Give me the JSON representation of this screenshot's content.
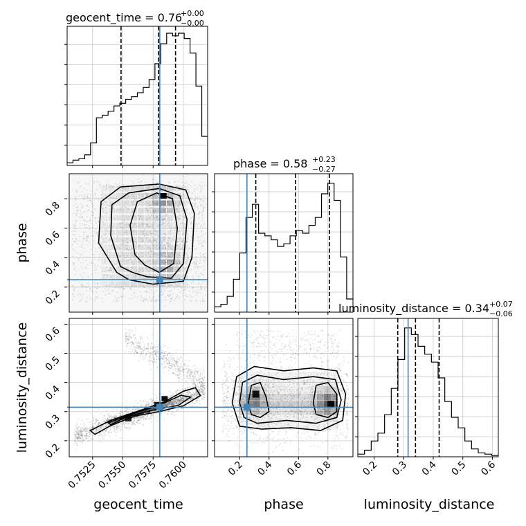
{
  "chart_data": {
    "type": "corner",
    "grid": true,
    "parameters": [
      {
        "name": "geocent_time",
        "axis_label": "geocent_time",
        "range": [
          0.7504,
          0.762
        ],
        "ticks": [
          0.7525,
          0.755,
          0.7575,
          0.76
        ],
        "tick_labels": [
          "0.7525",
          "0.7550",
          "0.7575",
          "0.7600"
        ],
        "truth": 0.75805,
        "quantiles": [
          0.75485,
          0.75795,
          0.75935
        ],
        "title": {
          "main": "geocent_time = 0.76",
          "plus": "+0.00",
          "minus": "−0.00"
        },
        "hist": [
          0.02,
          0.04,
          0.05,
          0.08,
          0.17,
          0.36,
          0.38,
          0.41,
          0.45,
          0.47,
          0.5,
          0.52,
          0.55,
          0.59,
          0.65,
          0.77,
          0.92,
          1.0,
          0.98,
          1.0,
          0.96,
          0.85,
          0.6,
          0.22
        ]
      },
      {
        "name": "phase",
        "axis_label": "phase",
        "range": [
          0.03,
          0.97
        ],
        "ticks": [
          0.2,
          0.4,
          0.6,
          0.8
        ],
        "tick_labels": [
          "0.2",
          "0.4",
          "0.6",
          "0.8"
        ],
        "truth": 0.25,
        "quantiles": [
          0.31,
          0.58,
          0.81
        ],
        "title": {
          "main": "phase = 0.58",
          "plus": "+0.23",
          "minus": "−0.27"
        },
        "hist": [
          0.04,
          0.06,
          0.12,
          0.25,
          0.45,
          0.72,
          0.82,
          0.6,
          0.58,
          0.55,
          0.5,
          0.52,
          0.58,
          0.62,
          0.6,
          0.66,
          0.72,
          0.9,
          0.98,
          0.85,
          0.42,
          0.1
        ]
      },
      {
        "name": "luminosity_distance",
        "axis_label": "luminosity_distance",
        "range": [
          0.145,
          0.62
        ],
        "ticks": [
          0.2,
          0.3,
          0.4,
          0.5,
          0.6
        ],
        "tick_labels": [
          "0.2",
          "0.3",
          "0.4",
          "0.5",
          "0.6"
        ],
        "truth": 0.315,
        "quantiles": [
          0.28,
          0.34,
          0.42
        ],
        "title": {
          "main": "luminosity_distance = 0.34",
          "plus": "+0.07",
          "minus": "−0.06"
        },
        "hist": [
          0.02,
          0.05,
          0.12,
          0.18,
          0.32,
          0.52,
          0.74,
          0.98,
          0.93,
          0.84,
          0.78,
          0.72,
          0.6,
          0.42,
          0.3,
          0.22,
          0.12,
          0.06,
          0.03,
          0.02,
          0.01
        ]
      }
    ],
    "colors": {
      "truth": "#4682b4",
      "hist": "#000000",
      "grid": "#c8c8c8",
      "quantile": "#000000"
    }
  }
}
